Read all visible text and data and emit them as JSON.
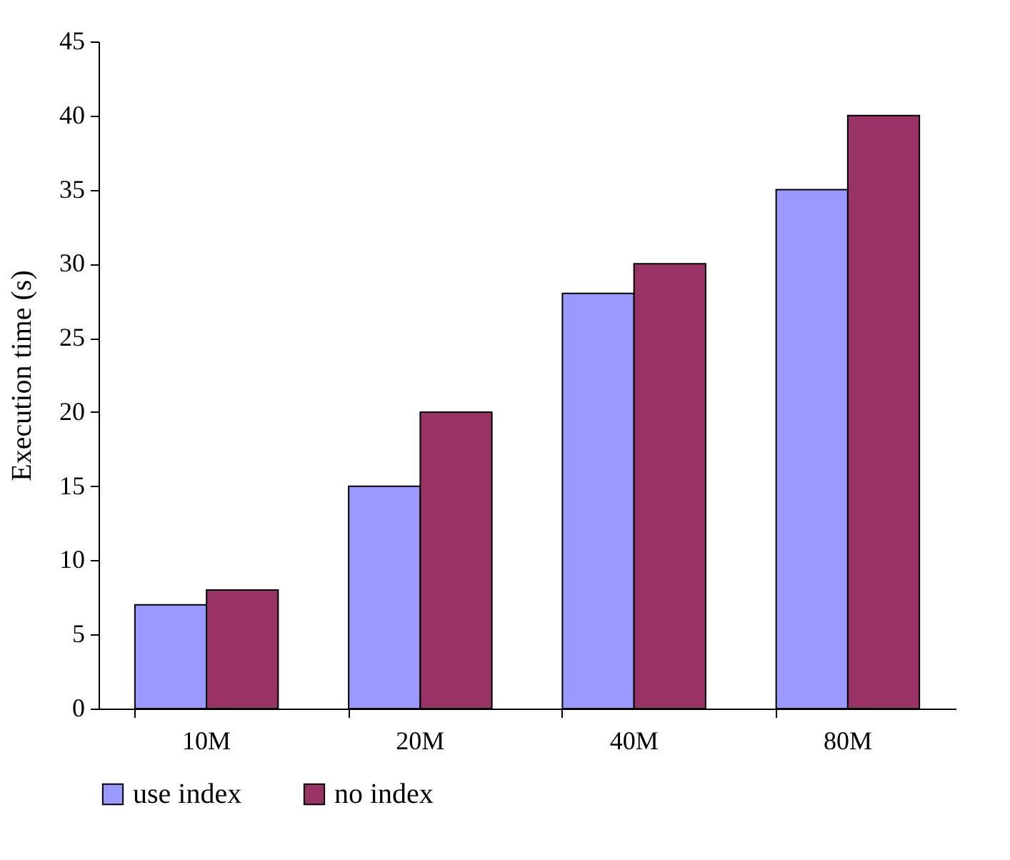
{
  "chart_data": {
    "type": "bar",
    "ylabel": "Execution time (s)",
    "categories": [
      "10M",
      "20M",
      "40M",
      "80M"
    ],
    "series": [
      {
        "name": "use index",
        "color": "#9999ff",
        "values": [
          7,
          15,
          28,
          35
        ]
      },
      {
        "name": "no index",
        "color": "#993366",
        "values": [
          8,
          20,
          30,
          40
        ]
      }
    ],
    "ylim": [
      0,
      45
    ],
    "yticks": [
      0,
      5,
      10,
      15,
      20,
      25,
      30,
      35,
      40,
      45
    ],
    "grid": false,
    "legend": "bottom"
  }
}
